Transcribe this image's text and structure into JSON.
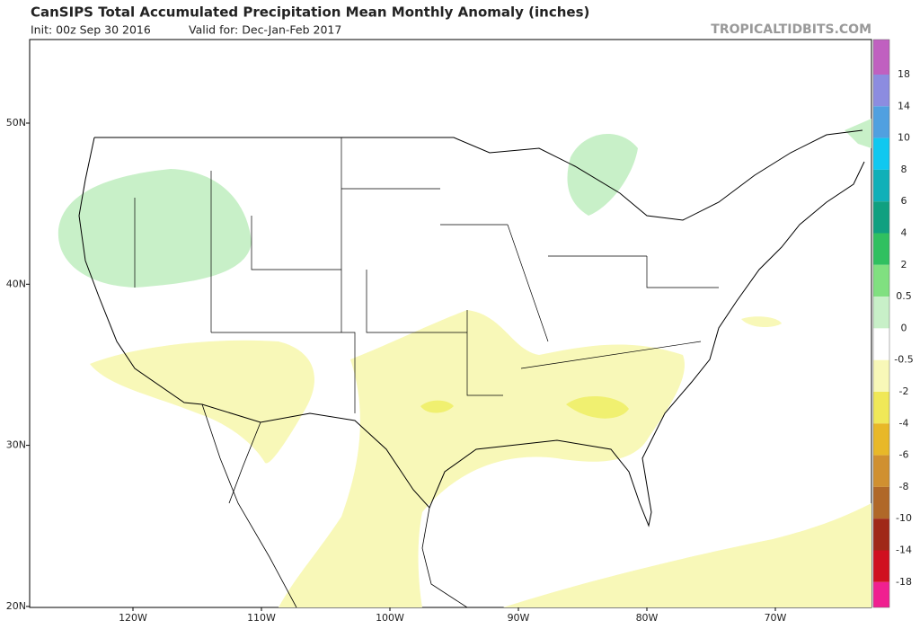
{
  "header": {
    "title": "CanSIPS Total Accumulated Precipitation Mean Monthly Anomaly (inches)",
    "init": "Init: 00z Sep 30 2016",
    "valid": "Valid for: Dec-Jan-Feb 2017",
    "watermark": "TROPICALTIDBITS.COM"
  },
  "map": {
    "lat_labels": [
      "50N",
      "40N",
      "30N",
      "20N"
    ],
    "lon_labels": [
      "120W",
      "110W",
      "100W",
      "90W",
      "80W",
      "70W"
    ]
  },
  "colorbar": {
    "labels": [
      18,
      14,
      10,
      8,
      6,
      4,
      2,
      0.5,
      0,
      -0.5,
      -2,
      -4,
      -6,
      -8,
      -10,
      -14,
      -18
    ],
    "colors": [
      "#c060c0",
      "#8c8ce0",
      "#50a0e0",
      "#10c8f0",
      "#10b0b8",
      "#10a080",
      "#30c060",
      "#80e080",
      "#c8f0c8",
      "#ffffff",
      "#f8f8b8",
      "#f0e858",
      "#e8b828",
      "#d09030",
      "#b06828",
      "#a02818",
      "#d01020",
      "#f02090"
    ]
  }
}
